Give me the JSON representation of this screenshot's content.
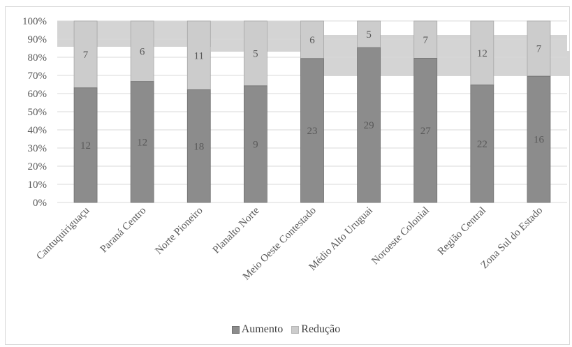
{
  "chart_data": {
    "type": "bar",
    "stacked": "percent",
    "categories": [
      "Cantuquiriguaçu",
      "Paraná Centro",
      "Norte Pioneiro",
      "Planalto Norte",
      "Meio Oeste Contestado",
      "Médio Alto Uruguai",
      "Noroeste Colonial",
      "Região Central",
      "Zona Sul do Estado"
    ],
    "series": [
      {
        "name": "Aumento",
        "values": [
          12,
          12,
          18,
          9,
          23,
          29,
          27,
          22,
          16
        ],
        "color": "#8c8c8c"
      },
      {
        "name": "Redução",
        "values": [
          7,
          6,
          11,
          5,
          6,
          5,
          7,
          12,
          7
        ],
        "color": "#cccccc"
      }
    ],
    "yticks": [
      "0%",
      "10%",
      "20%",
      "30%",
      "40%",
      "50%",
      "60%",
      "70%",
      "80%",
      "90%",
      "100%"
    ],
    "ylim": [
      0,
      100
    ],
    "grid": true,
    "legend_position": "bottom"
  }
}
